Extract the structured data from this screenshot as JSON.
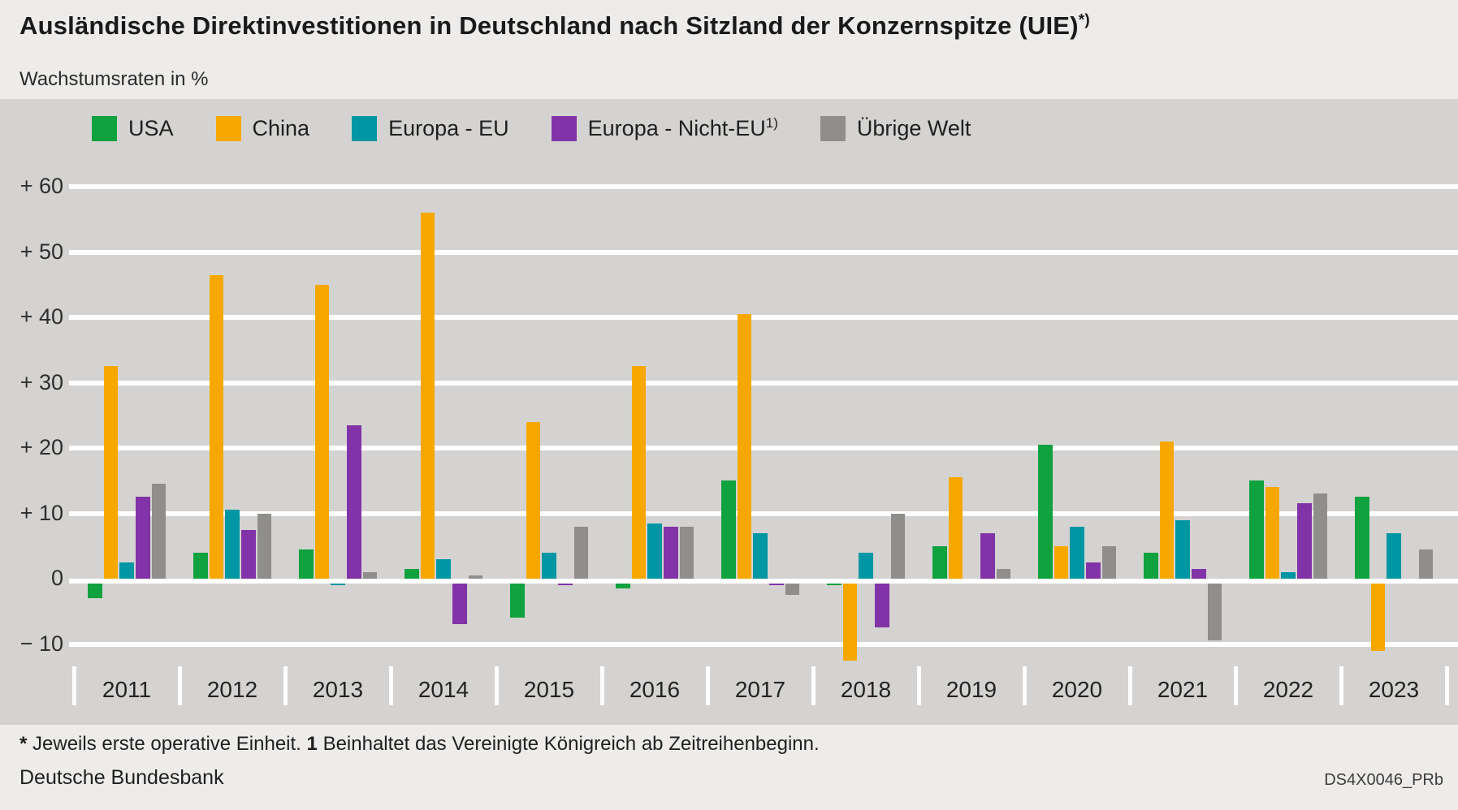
{
  "header": {
    "title": "Ausländische Direktinvestitionen in Deutschland nach Sitzland der Konzernspitze (UIE)",
    "title_superscript": "*)",
    "subtitle": "Wachstumsraten in %"
  },
  "legend": [
    {
      "label": "USA",
      "superscript": "",
      "color": "#10a23e"
    },
    {
      "label": "China",
      "superscript": "",
      "color": "#f6a800"
    },
    {
      "label": "Europa - EU",
      "superscript": "",
      "color": "#0096a4"
    },
    {
      "label": "Europa - Nicht-EU",
      "superscript": "1)",
      "color": "#8233a8"
    },
    {
      "label": "Übrige Welt",
      "superscript": "",
      "color": "#8f8e8c"
    }
  ],
  "chart_data": {
    "type": "bar",
    "title": "Ausländische Direktinvestitionen in Deutschland nach Sitzland der Konzernspitze (UIE)*)",
    "subtitle_unit": "Wachstumsraten in %",
    "categories": [
      "2011",
      "2012",
      "2013",
      "2014",
      "2015",
      "2016",
      "2017",
      "2018",
      "2019",
      "2020",
      "2021",
      "2022",
      "2023"
    ],
    "series": [
      {
        "name": "USA",
        "color": "#10a23e",
        "values": [
          -2.5,
          4,
          4.5,
          1.5,
          -5.5,
          -1,
          15,
          -0.5,
          5,
          20.5,
          4,
          15,
          12.5
        ]
      },
      {
        "name": "China",
        "color": "#f6a800",
        "values": [
          32.5,
          46.5,
          45,
          56,
          24,
          32.5,
          40.5,
          -12,
          15.5,
          5,
          21,
          14,
          -10.5
        ]
      },
      {
        "name": "Europa - EU",
        "color": "#0096a4",
        "values": [
          2.5,
          10.5,
          -0.5,
          3,
          4,
          8.5,
          7,
          4,
          0,
          8,
          9,
          1,
          7
        ]
      },
      {
        "name": "Europa - Nicht-EU",
        "color": "#8233a8",
        "values": [
          12.5,
          7.5,
          23.5,
          -6.5,
          -0.5,
          8,
          -0.5,
          -7,
          7,
          2.5,
          1.5,
          11.5,
          0
        ]
      },
      {
        "name": "Übrige Welt",
        "color": "#8f8e8c",
        "values": [
          14.5,
          10,
          1,
          0.5,
          8,
          8,
          -2,
          10,
          1.5,
          5,
          -9,
          13,
          4.5
        ]
      }
    ],
    "y_ticks": [
      {
        "value": 60,
        "label": "+ 60"
      },
      {
        "value": 50,
        "label": "+ 50"
      },
      {
        "value": 40,
        "label": "+ 40"
      },
      {
        "value": 30,
        "label": "+ 30"
      },
      {
        "value": 20,
        "label": "+ 20"
      },
      {
        "value": 10,
        "label": "+ 10"
      },
      {
        "value": 0,
        "label": "0"
      },
      {
        "value": -10,
        "label": "− 10"
      }
    ],
    "ylim": [
      -13.5,
      73
    ],
    "grid": "horizontal white gridlines on gray panel",
    "legend_position": "top-left inside plot"
  },
  "footer": {
    "footnote_star": "*",
    "footnote_text1": "Jeweils erste operative Einheit.",
    "footnote_num": "1",
    "footnote_text2": "Beinhaltet das Vereinigte Königreich ab Zeitreihenbeginn.",
    "source": "Deutsche Bundesbank",
    "code": "DS4X0046_PRb"
  }
}
